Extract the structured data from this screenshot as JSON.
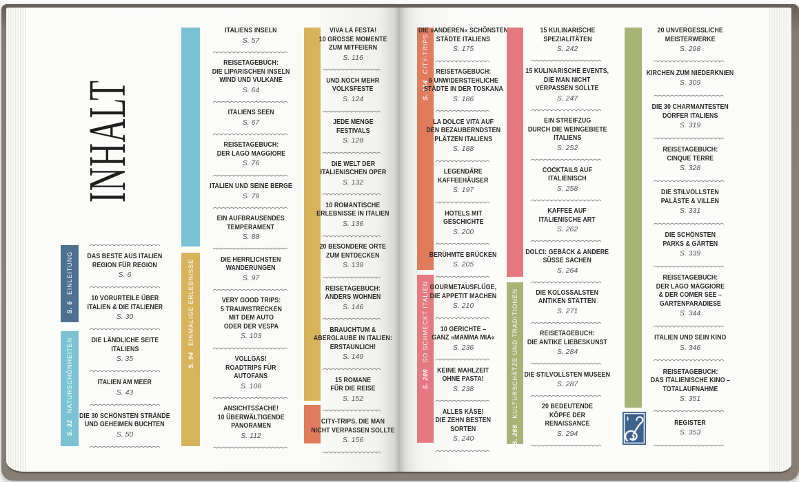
{
  "title": "INHALT",
  "colors": {
    "einleitung": "#4e7191",
    "naturschoenheiten": "#7bc3d2",
    "einmalige_erlebnisse": "#d7b35c",
    "city_trips": "#e07b5c",
    "so_schmeckt_italien": "#e4797f",
    "kulturschaetze": "#a8b476",
    "ornament": "#3d628b"
  },
  "icons": {
    "ornament": "flourish-stamp"
  },
  "sections": {
    "einleitung": {
      "page": "S. 6",
      "label": "EINLEITUNG"
    },
    "naturschoenheiten": {
      "page": "S. 32",
      "label": "NATURSCHÖNHEITEN"
    },
    "einmalige_erlebnisse": {
      "page": "S. 94",
      "label": "EINMALIGE ERLEBNISSE"
    },
    "city_trips": {
      "page": "S. 154",
      "label": "CITY-TRIPS"
    },
    "so_schmeckt_italien": {
      "page": "S. 208",
      "label": "SO SCHMECKT ITALIEN"
    },
    "kulturschaetze": {
      "page": "S. 268",
      "label": "KULTURSCHÄTZE UND TRADITIONEN"
    }
  },
  "columns": [
    {
      "entries": [
        {
          "lines": [
            "DAS BESTE AUS ITALIEN",
            "REGION FÜR REGION"
          ],
          "page": "S. 6"
        },
        {
          "lines": [
            "10 VORURTEILE ÜBER",
            "ITALIEN & DIE ITALIENER"
          ],
          "page": "S. 30"
        },
        {
          "lines": [
            "DIE LÄNDLICHE SEITE",
            "ITALIENS"
          ],
          "page": "S. 35"
        },
        {
          "lines": [
            "ITALIEN AM MEER"
          ],
          "page": "S. 43"
        },
        {
          "lines": [
            "DIE 30 SCHÖNSTEN STRÄNDE",
            "UND GEHEIMEN BUCHTEN"
          ],
          "page": "S. 50"
        }
      ]
    },
    {
      "entries": [
        {
          "lines": [
            "ITALIENS INSELN"
          ],
          "page": "S. 57"
        },
        {
          "lines": [
            "REISETAGEBUCH:",
            "DIE LIPARISCHEN INSELN",
            "WIND UND VULKANE"
          ],
          "page": "S. 64"
        },
        {
          "lines": [
            "ITALIENS SEEN"
          ],
          "page": "S. 67"
        },
        {
          "lines": [
            "REISETAGEBUCH:",
            "DER LAGO MAGGIORE"
          ],
          "page": "S. 76"
        },
        {
          "lines": [
            "ITALIEN UND SEINE BERGE"
          ],
          "page": "S. 79"
        },
        {
          "lines": [
            "EIN AUFBRAUSENDES",
            "TEMPERAMENT"
          ],
          "page": "S. 88"
        },
        {
          "lines": [
            "DIE HERRLICHSTEN",
            "WANDERUNGEN"
          ],
          "page": "S. 97"
        },
        {
          "lines": [
            "VERY GOOD TRIPS:",
            "5 TRAUMSTRECKEN",
            "MIT DEM AUTO",
            "ODER DER VESPA"
          ],
          "page": "S. 103"
        },
        {
          "lines": [
            "VOLLGAS!",
            "ROADTRIPS FÜR",
            "AUTOFANS"
          ],
          "page": "S. 108"
        },
        {
          "lines": [
            "ANSICHTSSACHE!",
            "10 ÜBERWÄLTIGENDE",
            "PANORAMEN"
          ],
          "page": "S. 112"
        }
      ]
    },
    {
      "entries": [
        {
          "lines": [
            "VIVA LA FESTA!",
            "10 GROSSE MOMENTE",
            "ZUM MITFEIERN"
          ],
          "page": "S. 116"
        },
        {
          "lines": [
            "UND NOCH MEHR",
            "VOLKSFESTE"
          ],
          "page": "S. 124"
        },
        {
          "lines": [
            "JEDE MENGE",
            "FESTIVALS"
          ],
          "page": "S. 128"
        },
        {
          "lines": [
            "DIE WELT DER",
            "ITALIENISCHEN OPER"
          ],
          "page": "S. 132"
        },
        {
          "lines": [
            "10 ROMANTISCHE",
            "ERLEBNISSE IN ITALIEN"
          ],
          "page": "S. 136"
        },
        {
          "lines": [
            "20 BESONDERE ORTE",
            "ZUM ENTDECKEN"
          ],
          "page": "S. 139"
        },
        {
          "lines": [
            "REISETAGEBUCH:",
            "ANDERS WOHNEN"
          ],
          "page": "S. 146"
        },
        {
          "lines": [
            "BRAUCHTUM &",
            "ABERGLAUBE IN ITALIEN:",
            "ERSTAUNLICH!"
          ],
          "page": "S. 149"
        },
        {
          "lines": [
            "15 ROMANE",
            "FÜR DIE REISE"
          ],
          "page": "S. 152"
        },
        {
          "lines": [
            "CITY-TRIPS, DIE MAN",
            "NICHT VERPASSEN SOLLTE"
          ],
          "page": "S. 156"
        }
      ]
    },
    {
      "entries": [
        {
          "lines": [
            "DIE »ANDEREN« SCHÖNSTEN",
            "STÄDTE ITALIENS"
          ],
          "page": "S. 175"
        },
        {
          "lines": [
            "REISETAGEBUCH:",
            "6 UNWIDERSTEHLICHE",
            "STÄDTE IN DER TOSKANA"
          ],
          "page": "S. 186"
        },
        {
          "lines": [
            "LA DOLCE VITA AUF",
            "DEN BEZAUBERNDSTEN",
            "PLÄTZEN ITALIENS"
          ],
          "page": "S. 188"
        },
        {
          "lines": [
            "LEGENDÄRE",
            "KAFFEEHÄUSER"
          ],
          "page": "S. 197"
        },
        {
          "lines": [
            "HOTELS MIT",
            "GESCHICHTE"
          ],
          "page": "S. 200"
        },
        {
          "lines": [
            "BERÜHMTE BRÜCKEN"
          ],
          "page": "S. 205"
        },
        {
          "lines": [
            "GOURMETAUSFLÜGE,",
            "DIE APPETIT MACHEN"
          ],
          "page": "S. 210"
        },
        {
          "lines": [
            "10 GERICHTE –",
            "GANZ »MAMMA MIA«"
          ],
          "page": "S. 236"
        },
        {
          "lines": [
            "KEINE MAHLZEIT",
            "OHNE PASTA!"
          ],
          "page": "S. 238"
        },
        {
          "lines": [
            "ALLES KÄSE!",
            "DIE ZEHN BESTEN",
            "SORTEN"
          ],
          "page": "S. 240"
        }
      ]
    },
    {
      "entries": [
        {
          "lines": [
            "15 KULINARISCHE",
            "SPEZIALITÄTEN"
          ],
          "page": "S. 242"
        },
        {
          "lines": [
            "15 KULINARISCHE EVENTS,",
            "DIE MAN NICHT",
            "VERPASSEN SOLLTE"
          ],
          "page": "S. 247"
        },
        {
          "lines": [
            "EIN STREIFZUG",
            "DURCH DIE WEINGEBIETE",
            "ITALIENS"
          ],
          "page": "S. 252"
        },
        {
          "lines": [
            "COCKTAILS AUF",
            "ITALIENISCH"
          ],
          "page": "S. 258"
        },
        {
          "lines": [
            "KAFFEE AUF",
            "ITALIENISCHE ART"
          ],
          "page": "S. 262"
        },
        {
          "lines": [
            "DOLCI: GEBÄCK & ANDERE",
            "SÜSSE SACHEN"
          ],
          "page": "S. 264"
        },
        {
          "lines": [
            "DIE KOLOSSALSTEN",
            "ANTIKEN STÄTTEN"
          ],
          "page": "S. 271"
        },
        {
          "lines": [
            "REISETAGEBUCH:",
            "DIE ANTIKE LIEBESKUNST"
          ],
          "page": "S. 284"
        },
        {
          "lines": [
            "DIE STILVOLLSTEN MUSEEN"
          ],
          "page": "S. 287"
        },
        {
          "lines": [
            "20 BEDEUTENDE",
            "KÖPFE DER",
            "RENAISSANCE"
          ],
          "page": "S. 294"
        }
      ]
    },
    {
      "entries": [
        {
          "lines": [
            "20 UNVERGESSLICHE",
            "MEISTERWERKE"
          ],
          "page": "S. 298"
        },
        {
          "lines": [
            "KIRCHEN ZUM NIEDERKNIEN"
          ],
          "page": "S. 309"
        },
        {
          "lines": [
            "DIE 30 CHARMANTESTEN",
            "DÖRFER ITALIENS"
          ],
          "page": "S. 319"
        },
        {
          "lines": [
            "REISETAGEBUCH:",
            "CINQUE TERRE"
          ],
          "page": "S. 328"
        },
        {
          "lines": [
            "DIE STILVOLLSTEN",
            "PALÄSTE & VILLEN"
          ],
          "page": "S. 331"
        },
        {
          "lines": [
            "DIE SCHÖNSTEN",
            "PARKS & GÄRTEN"
          ],
          "page": "S. 339"
        },
        {
          "lines": [
            "REISETAGEBUCH:",
            "DER LAGO MAGGIORE",
            "& DER COMER SEE –",
            "GARTENPARADIESE"
          ],
          "page": "S. 344"
        },
        {
          "lines": [
            "ITALIEN UND SEIN KINO"
          ],
          "page": "S. 346"
        },
        {
          "lines": [
            "REISETAGEBUCH:",
            "DAS ITALIENISCHE KINO –",
            "TOTALAUFNAHME"
          ],
          "page": "S. 351"
        },
        {
          "lines": [
            "REGISTER"
          ],
          "page": "S. 353"
        }
      ]
    }
  ]
}
